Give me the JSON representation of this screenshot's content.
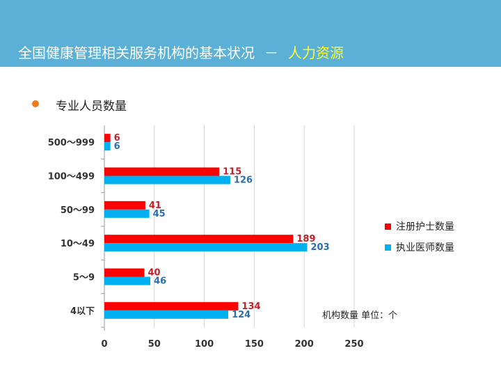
{
  "header": {
    "title_main": "全国健康管理相关服务机构的基本状况",
    "separator": "－",
    "title_accent": "人力资源"
  },
  "bullet": {
    "text": "专业人员数量"
  },
  "unit_note": "机构数量 单位：个",
  "colors": {
    "header_bg": "#5ab0d6",
    "accent_text": "#ffff33",
    "bullet": "#f07b1c",
    "nurse": "#ff0000",
    "doctor": "#00b0f0",
    "nurse_label": "#c0202a",
    "doctor_label": "#2a6fb0"
  },
  "chart_data": {
    "type": "bar",
    "orientation": "horizontal",
    "categories": [
      "500～999",
      "100～499",
      "50～99",
      "10～49",
      "5～9",
      "4以下"
    ],
    "series": [
      {
        "name": "注册护士数量",
        "values": [
          6,
          115,
          41,
          189,
          40,
          134
        ]
      },
      {
        "name": "执业医师数量",
        "values": [
          6,
          126,
          45,
          203,
          46,
          124
        ]
      }
    ],
    "xlim": [
      0,
      250
    ],
    "xticks": [
      0,
      50,
      100,
      150,
      200,
      250
    ],
    "grid": true,
    "legend": "right"
  }
}
